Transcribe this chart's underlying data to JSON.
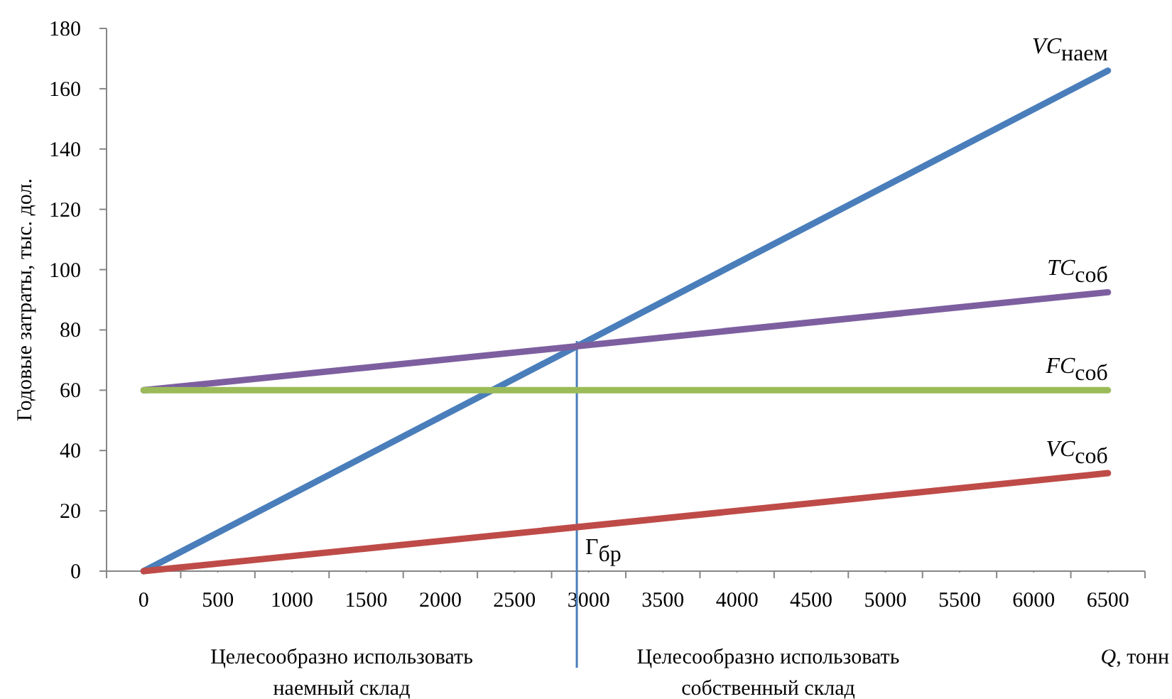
{
  "chart_data": {
    "type": "line",
    "ylabel": "Годовые затраты, тыс. дол.",
    "xlabel": "Q, тонн",
    "x": [
      0,
      6500
    ],
    "series": [
      {
        "name": "VC$_{наем}$",
        "color": "#4a7ebb",
        "values": [
          0,
          166
        ]
      },
      {
        "name": "TC$_{соб}$",
        "color": "#7d5fa0",
        "values": [
          60,
          92.5
        ]
      },
      {
        "name": "FC$_{соб}$",
        "color": "#9bbb59",
        "values": [
          60,
          60
        ]
      },
      {
        "name": "VC$_{соб}$",
        "color": "#be4b48",
        "values": [
          0,
          32.5
        ]
      }
    ],
    "xlim": [
      -250,
      6750
    ],
    "xticks": [
      0,
      500,
      1000,
      1500,
      2000,
      2500,
      3000,
      3500,
      4000,
      4500,
      5000,
      5500,
      6000,
      6500
    ],
    "ylim": [
      0,
      180
    ],
    "yticks": [
      0,
      20,
      40,
      60,
      80,
      100,
      120,
      140,
      160,
      180
    ],
    "ref_lines": [
      {
        "axis": "x",
        "value": 2920,
        "label": "Г$_{бр}$",
        "color": "#4a7ebb"
      }
    ],
    "annotations": [
      "Целесообразно использовать\nнаемный склад",
      "Целесообразно использовать\nсобственный склад"
    ],
    "marker": "none",
    "line_style": "solid"
  }
}
